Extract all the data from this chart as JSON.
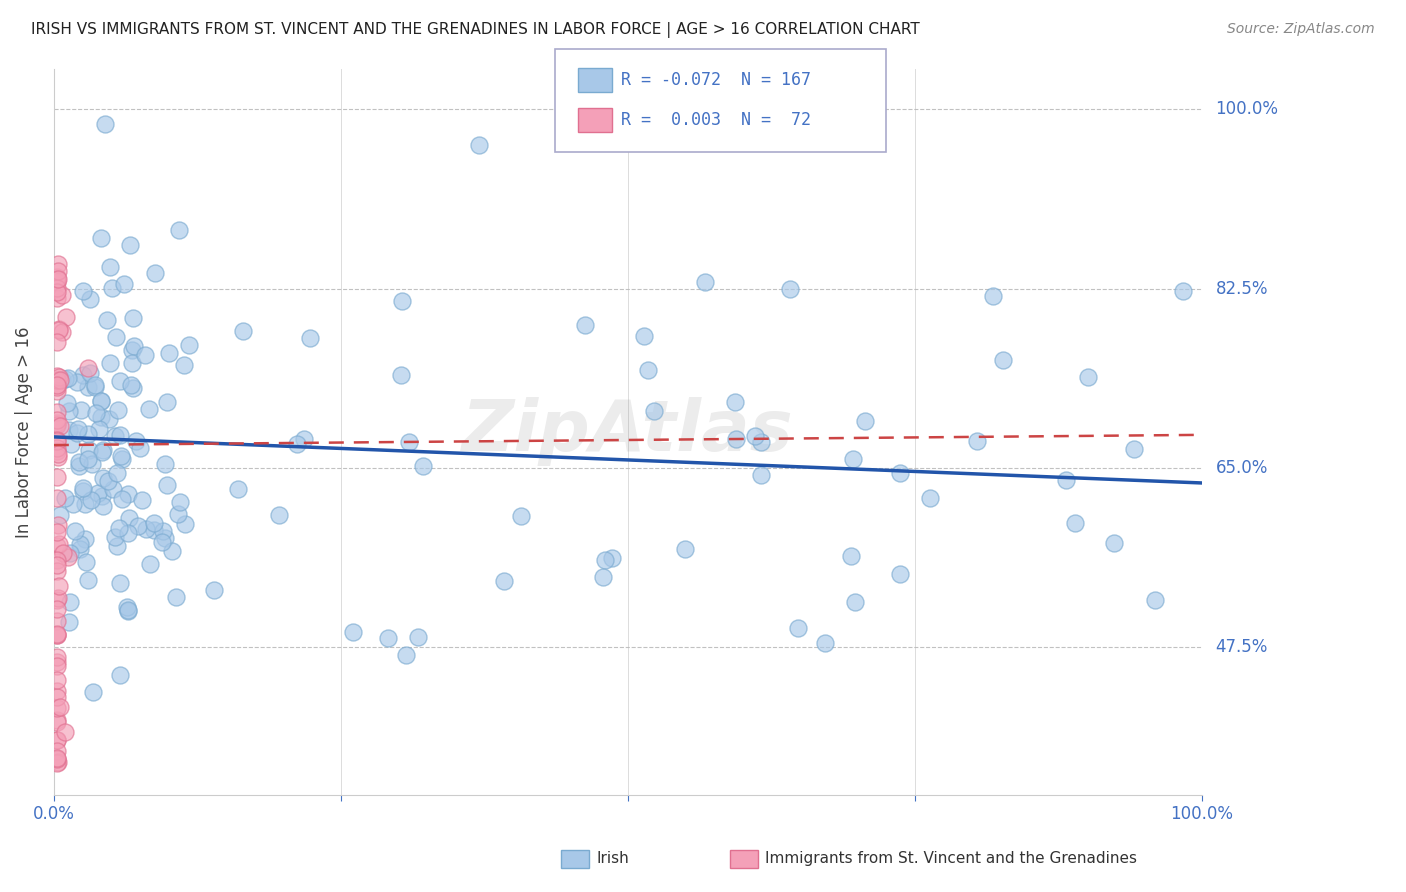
{
  "title": "IRISH VS IMMIGRANTS FROM ST. VINCENT AND THE GRENADINES IN LABOR FORCE | AGE > 16 CORRELATION CHART",
  "source": "Source: ZipAtlas.com",
  "ylabel": "In Labor Force | Age > 16",
  "xlim": [
    0,
    1.0
  ],
  "ylim": [
    0.33,
    1.04
  ],
  "yticks": [
    0.475,
    0.65,
    0.825,
    1.0
  ],
  "ytick_labels": [
    "47.5%",
    "65.0%",
    "82.5%",
    "100.0%"
  ],
  "irish_R": -0.072,
  "irish_N": 167,
  "svg_R": 0.003,
  "svg_N": 72,
  "irish_color": "#a8c8e8",
  "svg_color": "#f4a0b8",
  "irish_edge_color": "#7aaad0",
  "svg_edge_color": "#e07090",
  "irish_line_color": "#2255aa",
  "svg_line_color": "#cc4444",
  "watermark": "ZipAtlas",
  "background_color": "#ffffff",
  "grid_color": "#bbbbbb"
}
